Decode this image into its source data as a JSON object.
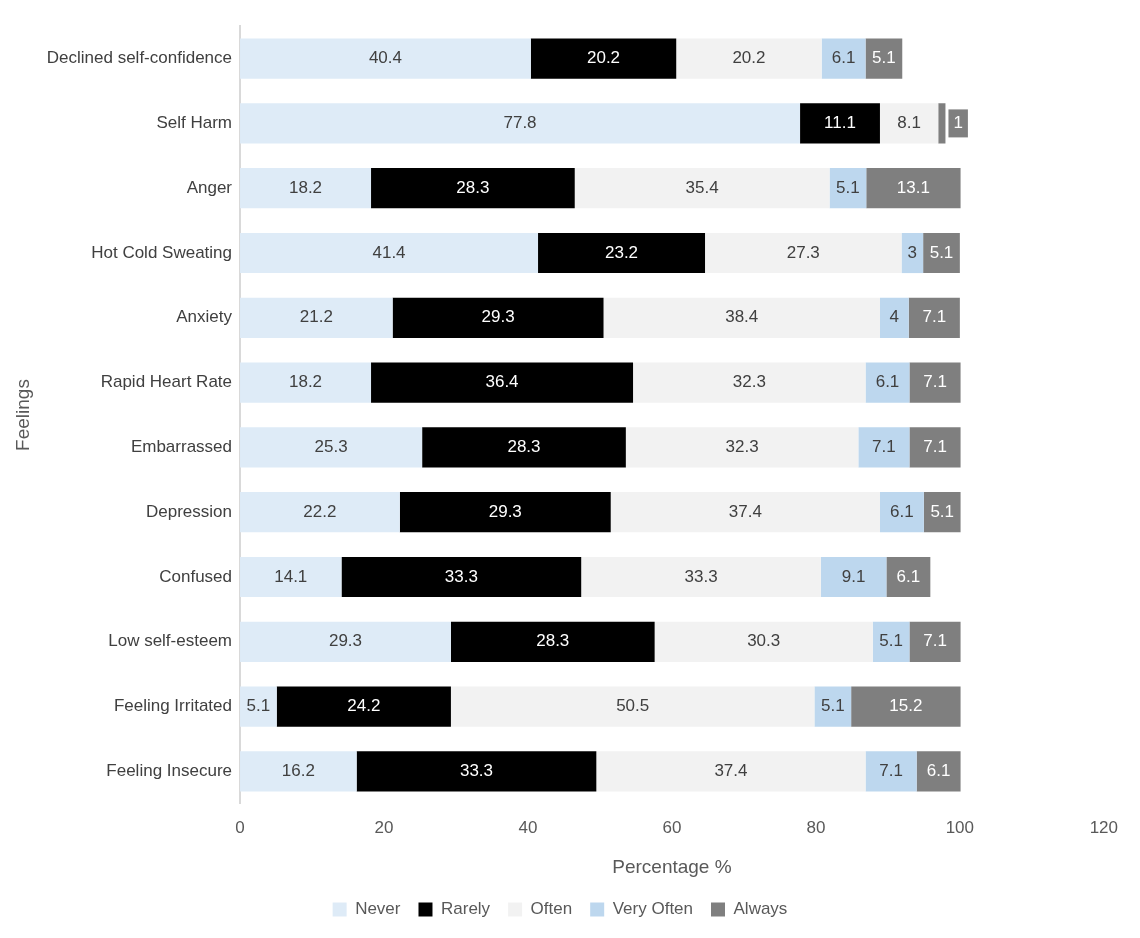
{
  "chart_data": {
    "type": "bar",
    "orientation": "horizontal",
    "stacked": true,
    "xlabel": "Percentage %",
    "ylabel": "Feelings",
    "categories": [
      "Declined self-confidence",
      "Self Harm",
      "Anger",
      "Hot Cold Sweating",
      "Anxiety",
      "Rapid Heart Rate",
      "Embarrassed",
      "Depression",
      "Confused",
      "Low self-esteem",
      "Feeling Irritated",
      "Feeling Insecure"
    ],
    "series": [
      {
        "name": "Never",
        "color": "#deebf7",
        "values": [
          40.4,
          77.8,
          18.2,
          41.4,
          21.2,
          18.2,
          25.3,
          22.2,
          14.1,
          29.3,
          5.1,
          16.2
        ]
      },
      {
        "name": "Rarely",
        "color": "#000000",
        "values": [
          20.2,
          11.1,
          28.3,
          23.2,
          29.3,
          36.4,
          28.3,
          29.3,
          33.3,
          28.3,
          24.2,
          33.3
        ]
      },
      {
        "name": "Often",
        "color": "#f2f2f2",
        "values": [
          20.2,
          8.1,
          35.4,
          27.3,
          38.4,
          32.3,
          32.3,
          37.4,
          33.3,
          30.3,
          50.5,
          37.4
        ]
      },
      {
        "name": "Very Often",
        "color": "#bdd7ee",
        "values": [
          6.1,
          null,
          5.1,
          3,
          4,
          6.1,
          7.1,
          6.1,
          9.1,
          5.1,
          5.1,
          7.1
        ]
      },
      {
        "name": "Always",
        "color": "#7f7f7f",
        "values": [
          5.1,
          1,
          13.1,
          5.1,
          7.1,
          7.1,
          7.1,
          5.1,
          6.1,
          7.1,
          15.2,
          6.1
        ]
      }
    ],
    "xlim": [
      0,
      120
    ],
    "xticks": [
      0,
      20,
      40,
      60,
      80,
      100,
      120
    ],
    "grid": false,
    "legend": "bottom",
    "data_labels": true
  }
}
